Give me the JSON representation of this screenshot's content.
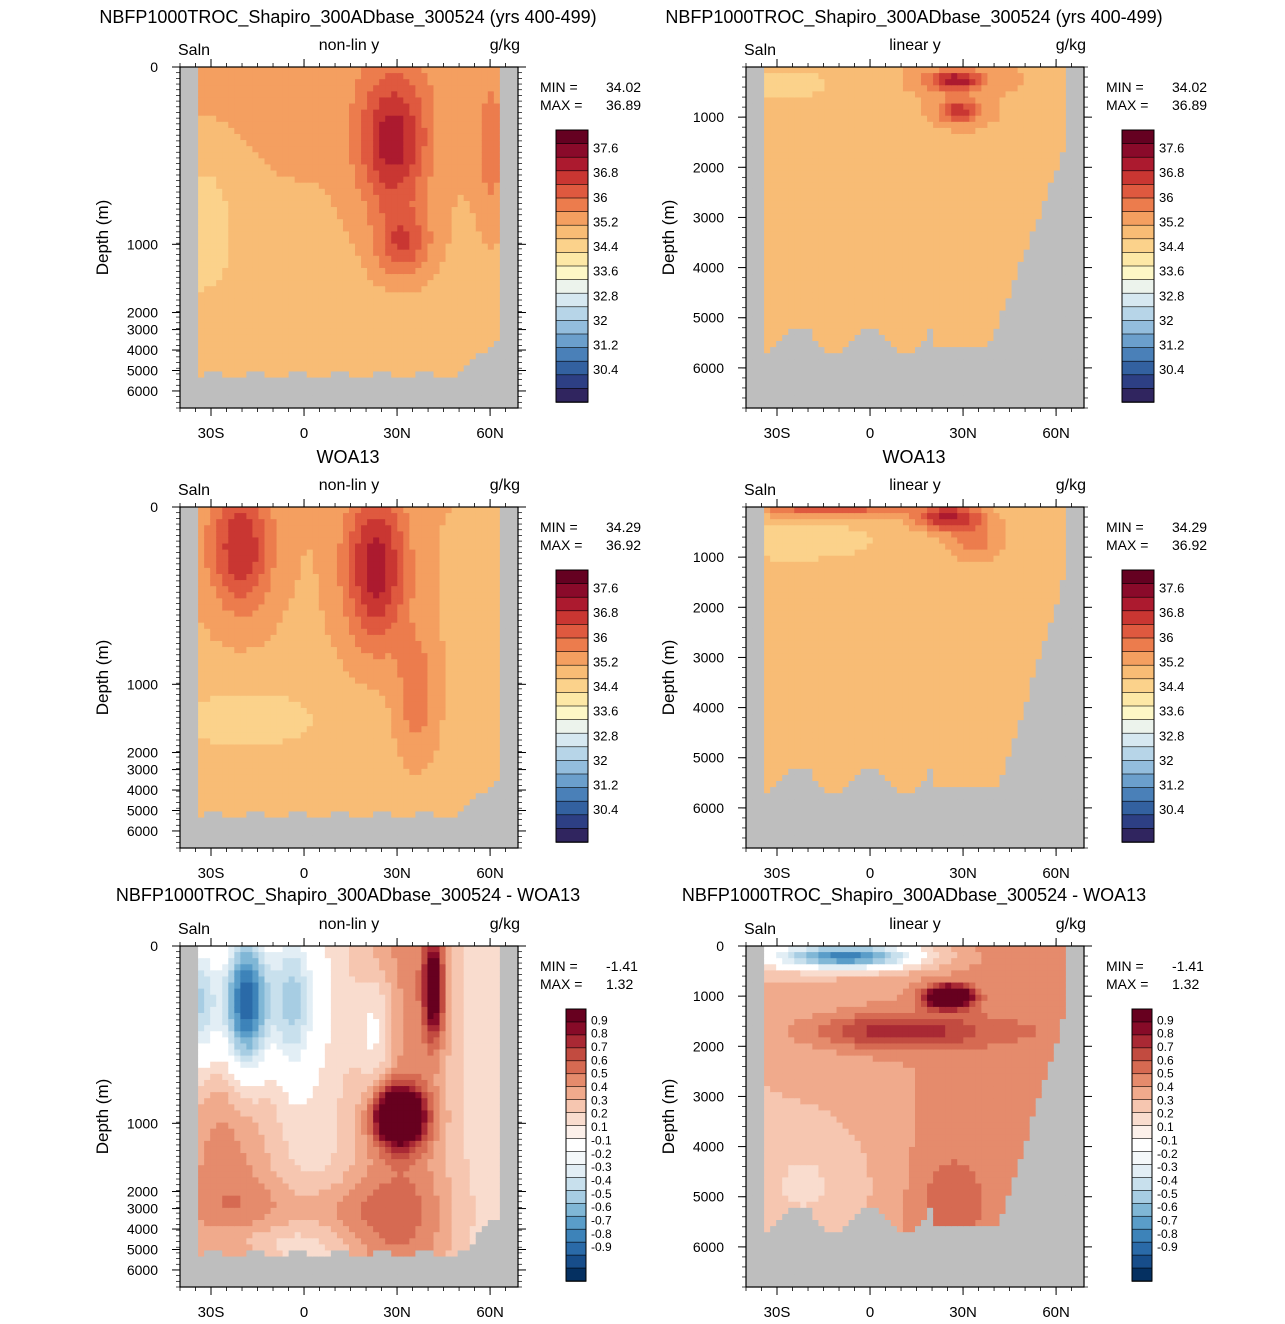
{
  "figure": {
    "model_title": "NBFP1000TROC_Shapiro_300ADbase_300524 (yrs 400-499)",
    "obs_title": "WOA13",
    "diff_title": "NBFP1000TROC_Shapiro_300ADbase_300524 - WOA13",
    "variable": "Saln",
    "units": "g/kg",
    "ylabel": "Depth (m)",
    "scale_nonlin": "non-lin y",
    "scale_linear": "linear y",
    "min_label": "MIN =",
    "max_label": "MAX ="
  },
  "colors": {
    "land": "#bebebe",
    "salinity_scale": [
      "#30255f",
      "#2d3f84",
      "#3361a0",
      "#4a80b8",
      "#6b9fcc",
      "#93bddd",
      "#b7d5e8",
      "#d6e8f1",
      "#ecf3ec",
      "#fdf7c6",
      "#fde8a6",
      "#fbd28b",
      "#f8bc75",
      "#f49f60",
      "#ec7c4d",
      "#df593f",
      "#c93632",
      "#ac1a2f",
      "#8a0a2a",
      "#650121"
    ],
    "diff_scale": [
      "#053061",
      "#174d8a",
      "#2a6aa8",
      "#3d83b9",
      "#5a9dc9",
      "#80b7d6",
      "#a7cde3",
      "#c8e0ed",
      "#e2eef5",
      "#f4f8fa",
      "#ffffff",
      "#fcf0ea",
      "#f9dcce",
      "#f6c6b0",
      "#f0aa8c",
      "#e58b6c",
      "#d66a52",
      "#c24b40",
      "#a92934",
      "#870b28",
      "#67001f"
    ]
  },
  "chart_data": [
    {
      "panel": "model-nonlin",
      "type": "heatmap",
      "title": "NBFP1000TROC_Shapiro_300ADbase_300524 (yrs 400-499)",
      "subtitle": "non-lin y",
      "xlabel": "",
      "ylabel": "Depth (m)",
      "x_ticks": [
        "30S",
        "0",
        "30N",
        "60N"
      ],
      "x_tick_values": [
        -30,
        0,
        30,
        60
      ],
      "xlim": [
        -40,
        69
      ],
      "y_scale": "nonlinear",
      "y_ticks": [
        0,
        1000,
        2000,
        3000,
        4000,
        5000,
        6000
      ],
      "ylim": [
        0,
        6800
      ],
      "min": "34.02",
      "max": "36.89",
      "colorbar": [
        "37.6",
        "36.8",
        "36",
        "35.2",
        "34.4",
        "33.6",
        "32.8",
        "32",
        "31.2",
        "30.4"
      ]
    },
    {
      "panel": "model-linear",
      "type": "heatmap",
      "title": "NBFP1000TROC_Shapiro_300ADbase_300524 (yrs 400-499)",
      "subtitle": "linear y",
      "xlabel": "",
      "ylabel": "Depth (m)",
      "x_ticks": [
        "30S",
        "0",
        "30N",
        "60N"
      ],
      "x_tick_values": [
        -30,
        0,
        30,
        60
      ],
      "xlim": [
        -40,
        69
      ],
      "y_scale": "linear",
      "y_ticks": [
        1000,
        2000,
        3000,
        4000,
        5000,
        6000
      ],
      "ylim": [
        0,
        6800
      ],
      "min": "34.02",
      "max": "36.89",
      "colorbar": [
        "37.6",
        "36.8",
        "36",
        "35.2",
        "34.4",
        "33.6",
        "32.8",
        "32",
        "31.2",
        "30.4"
      ]
    },
    {
      "panel": "obs-nonlin",
      "type": "heatmap",
      "title": "WOA13",
      "subtitle": "non-lin y",
      "xlabel": "",
      "ylabel": "Depth (m)",
      "x_ticks": [
        "30S",
        "0",
        "30N",
        "60N"
      ],
      "x_tick_values": [
        -30,
        0,
        30,
        60
      ],
      "xlim": [
        -40,
        69
      ],
      "y_scale": "nonlinear",
      "y_ticks": [
        0,
        1000,
        2000,
        3000,
        4000,
        5000,
        6000
      ],
      "ylim": [
        0,
        6800
      ],
      "min": "34.29",
      "max": "36.92",
      "colorbar": [
        "37.6",
        "36.8",
        "36",
        "35.2",
        "34.4",
        "33.6",
        "32.8",
        "32",
        "31.2",
        "30.4"
      ]
    },
    {
      "panel": "obs-linear",
      "type": "heatmap",
      "title": "WOA13",
      "subtitle": "linear y",
      "xlabel": "",
      "ylabel": "Depth (m)",
      "x_ticks": [
        "30S",
        "0",
        "30N",
        "60N"
      ],
      "x_tick_values": [
        -30,
        0,
        30,
        60
      ],
      "xlim": [
        -40,
        69
      ],
      "y_scale": "linear",
      "y_ticks": [
        1000,
        2000,
        3000,
        4000,
        5000,
        6000
      ],
      "ylim": [
        0,
        6800
      ],
      "min": "34.29",
      "max": "36.92",
      "colorbar": [
        "37.6",
        "36.8",
        "36",
        "35.2",
        "34.4",
        "33.6",
        "32.8",
        "32",
        "31.2",
        "30.4"
      ]
    },
    {
      "panel": "diff-nonlin",
      "type": "heatmap",
      "title": "NBFP1000TROC_Shapiro_300ADbase_300524 - WOA13",
      "subtitle": "non-lin y",
      "xlabel": "",
      "ylabel": "Depth (m)",
      "x_ticks": [
        "30S",
        "0",
        "30N",
        "60N"
      ],
      "x_tick_values": [
        -30,
        0,
        30,
        60
      ],
      "xlim": [
        -40,
        69
      ],
      "y_scale": "nonlinear",
      "y_ticks": [
        0,
        1000,
        2000,
        3000,
        4000,
        5000,
        6000
      ],
      "ylim": [
        0,
        6800
      ],
      "min": "-1.41",
      "max": "1.32",
      "colorbar": [
        "0.9",
        "0.8",
        "0.7",
        "0.6",
        "0.5",
        "0.4",
        "0.3",
        "0.2",
        "0.1",
        "-0.1",
        "-0.2",
        "-0.3",
        "-0.4",
        "-0.5",
        "-0.6",
        "-0.7",
        "-0.8",
        "-0.9"
      ]
    },
    {
      "panel": "diff-linear",
      "type": "heatmap",
      "title": "NBFP1000TROC_Shapiro_300ADbase_300524 - WOA13",
      "subtitle": "linear y",
      "xlabel": "",
      "ylabel": "Depth (m)",
      "x_ticks": [
        "30S",
        "0",
        "30N",
        "60N"
      ],
      "x_tick_values": [
        -30,
        0,
        30,
        60
      ],
      "xlim": [
        -40,
        69
      ],
      "y_scale": "linear",
      "y_ticks": [
        0,
        1000,
        2000,
        3000,
        4000,
        5000,
        6000
      ],
      "ylim": [
        0,
        6800
      ],
      "min": "-1.41",
      "max": "1.32",
      "colorbar": [
        "0.9",
        "0.8",
        "0.7",
        "0.6",
        "0.5",
        "0.4",
        "0.3",
        "0.2",
        "0.1",
        "-0.1",
        "-0.2",
        "-0.3",
        "-0.4",
        "-0.5",
        "-0.6",
        "-0.7",
        "-0.8",
        "-0.9"
      ]
    }
  ]
}
